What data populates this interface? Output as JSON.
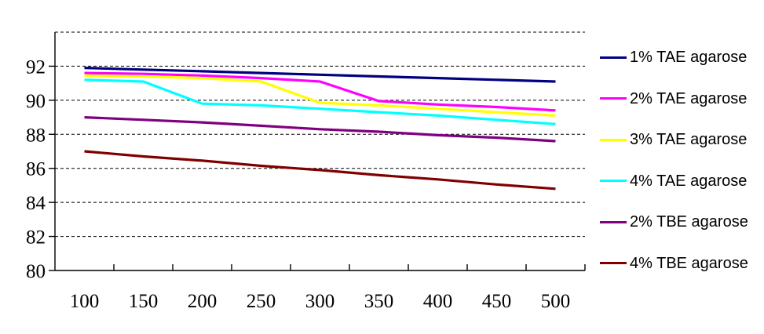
{
  "chart_data": {
    "type": "line",
    "title": "",
    "xlabel": "",
    "ylabel": "",
    "x": [
      100,
      150,
      200,
      250,
      300,
      350,
      400,
      450,
      500
    ],
    "series": [
      {
        "name": "1% TAE agarose",
        "color": "#000080",
        "values": [
          91.9,
          91.8,
          91.7,
          91.6,
          91.5,
          91.4,
          91.3,
          91.2,
          91.1
        ]
      },
      {
        "name": "2% TAE agarose",
        "color": "#ff00ff",
        "values": [
          91.6,
          91.55,
          91.45,
          91.3,
          91.1,
          89.95,
          89.75,
          89.6,
          89.4
        ]
      },
      {
        "name": "3% TAE agarose",
        "color": "#ffff00",
        "values": [
          91.45,
          91.4,
          91.3,
          91.1,
          89.85,
          89.7,
          89.5,
          89.3,
          89.1
        ]
      },
      {
        "name": "4% TAE agarose",
        "color": "#00ffff",
        "values": [
          91.2,
          91.1,
          89.8,
          89.7,
          89.5,
          89.3,
          89.1,
          88.85,
          88.6
        ]
      },
      {
        "name": "2% TBE agarose",
        "color": "#800080",
        "values": [
          89.0,
          88.85,
          88.7,
          88.5,
          88.3,
          88.15,
          87.95,
          87.8,
          87.6
        ]
      },
      {
        "name": "4% TBE agarose",
        "color": "#800000",
        "values": [
          87.0,
          86.7,
          86.45,
          86.15,
          85.9,
          85.6,
          85.35,
          85.05,
          84.8
        ]
      }
    ],
    "ylim": [
      80,
      94
    ],
    "gridline_step": 2,
    "y_tick_labels": [
      "92",
      "90",
      "88",
      "86",
      "84",
      "82",
      "80"
    ],
    "x_tick_labels": [
      "100",
      "150",
      "200",
      "250",
      "300",
      "350",
      "400",
      "450",
      "500"
    ],
    "grid": "horizontal-dashed",
    "legend_position": "right"
  },
  "colors": {
    "background": "#ffffff",
    "axis": "#000000",
    "gridline": "#000000",
    "tick_text": "#000000",
    "legend_text": "#000000"
  }
}
